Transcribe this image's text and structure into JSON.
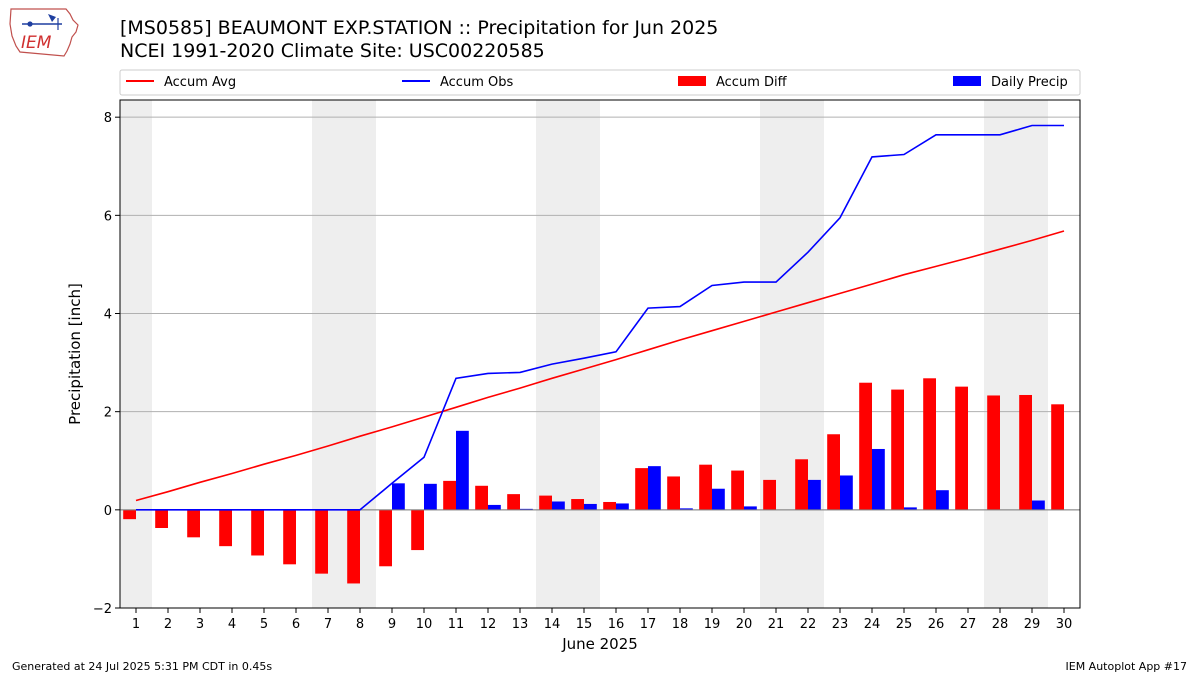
{
  "header": {
    "logo_text": "IEM",
    "title_line1": "[MS0585] BEAUMONT EXP.STATION :: Precipitation for Jun 2025",
    "title_line2": "NCEI 1991-2020 Climate Site: USC00220585"
  },
  "footer": {
    "generated": "Generated at 24 Jul 2025 5:31 PM CDT in 0.45s",
    "app": "IEM Autoplot App #17"
  },
  "colors": {
    "accum_avg": "#ff0000",
    "accum_obs": "#0000ff",
    "accum_diff": "#ff0000",
    "daily_precip": "#0000ff",
    "weekend_shade": "#eeeeee",
    "grid": "#b0b0b0"
  },
  "chart_data": {
    "type": "bar",
    "title": "",
    "xlabel": "June 2025",
    "ylabel": "Precipitation [inch]",
    "ylim": [
      -2,
      8.35
    ],
    "yticks": [
      -2,
      0,
      2,
      4,
      6,
      8
    ],
    "categories": [
      "1",
      "2",
      "3",
      "4",
      "5",
      "6",
      "7",
      "8",
      "9",
      "10",
      "11",
      "12",
      "13",
      "14",
      "15",
      "16",
      "17",
      "18",
      "19",
      "20",
      "21",
      "22",
      "23",
      "24",
      "25",
      "26",
      "27",
      "28",
      "29",
      "30"
    ],
    "weekend_days": [
      1,
      7,
      8,
      14,
      15,
      21,
      22,
      28,
      29
    ],
    "grid": "horizontal",
    "legend_position": "top",
    "series": [
      {
        "name": "Accum Avg",
        "kind": "line",
        "values": [
          0.19,
          0.37,
          0.56,
          0.74,
          0.93,
          1.11,
          1.3,
          1.5,
          1.69,
          1.89,
          2.09,
          2.29,
          2.48,
          2.68,
          2.87,
          3.06,
          3.26,
          3.46,
          3.65,
          3.84,
          4.03,
          4.22,
          4.41,
          4.6,
          4.79,
          4.96,
          5.13,
          5.31,
          5.49,
          5.68
        ]
      },
      {
        "name": "Accum Obs",
        "kind": "line",
        "values": [
          0,
          0,
          0,
          0,
          0,
          0,
          0,
          0,
          0.54,
          1.07,
          2.68,
          2.78,
          2.8,
          2.97,
          3.09,
          3.22,
          4.11,
          4.14,
          4.57,
          4.64,
          4.64,
          5.25,
          5.95,
          7.19,
          7.24,
          7.64,
          7.64,
          7.64,
          7.83,
          7.83
        ]
      },
      {
        "name": "Accum Diff",
        "kind": "bar",
        "values": [
          -0.19,
          -0.37,
          -0.56,
          -0.74,
          -0.93,
          -1.11,
          -1.3,
          -1.5,
          -1.15,
          -0.82,
          0.59,
          0.49,
          0.32,
          0.29,
          0.22,
          0.16,
          0.85,
          0.68,
          0.92,
          0.8,
          0.61,
          1.03,
          1.54,
          2.59,
          2.45,
          2.68,
          2.51,
          2.33,
          2.34,
          2.15
        ]
      },
      {
        "name": "Daily Precip",
        "kind": "bar",
        "values": [
          0,
          0,
          0,
          0,
          0,
          0,
          0,
          0,
          0.54,
          0.53,
          1.61,
          0.1,
          0.02,
          0.17,
          0.12,
          0.13,
          0.89,
          0.03,
          0.43,
          0.07,
          0,
          0.61,
          0.7,
          1.24,
          0.05,
          0.4,
          0,
          0,
          0.19,
          0
        ]
      }
    ]
  }
}
